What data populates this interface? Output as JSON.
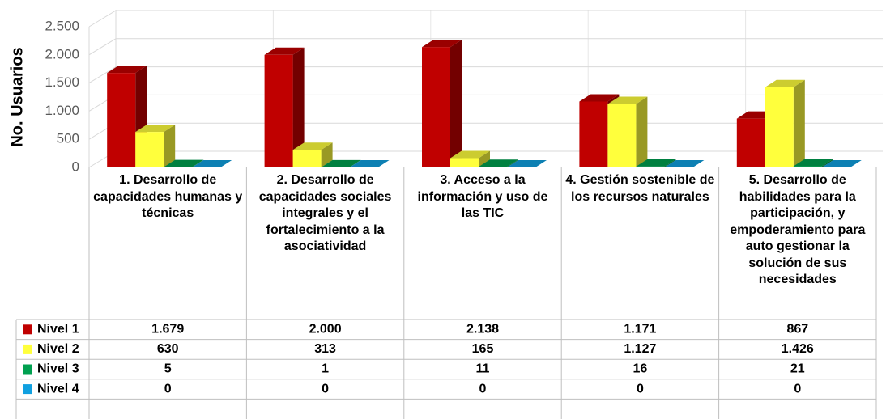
{
  "chart_data": {
    "type": "bar3d",
    "y_axis_label": "No. Usuarios",
    "categories": [
      "1. Desarrollo de capacidades humanas y técnicas",
      "2. Desarrollo de capacidades sociales integrales y el fortalecimiento a la asociatividad",
      "3. Acceso a la información y uso de las TIC",
      "4. Gestión sostenible de los recursos naturales",
      "5. Desarrollo de habilidades para la participación, y empoderamiento para auto gestionar la solución de sus necesidades"
    ],
    "series": [
      {
        "name": "Nivel 1",
        "color": "#c00000",
        "values": [
          1679,
          2000,
          2138,
          1171,
          867
        ],
        "value_labels": [
          "1.679",
          "2.000",
          "2.138",
          "1.171",
          "867"
        ]
      },
      {
        "name": "Nivel 2",
        "color": "#ffff3c",
        "values": [
          630,
          313,
          165,
          1127,
          1426
        ],
        "value_labels": [
          "630",
          "313",
          "165",
          "1.127",
          "1.426"
        ]
      },
      {
        "name": "Nivel 3",
        "color": "#00a050",
        "values": [
          5,
          1,
          11,
          16,
          21
        ]
      },
      {
        "name": "Nivel 4",
        "color": "#10a0e0",
        "values": [
          0,
          0,
          0,
          0,
          0
        ]
      }
    ],
    "ylim": [
      0,
      2500
    ],
    "yticks": [
      0,
      500,
      {
        "value": 1000,
        "label": "1.000"
      },
      {
        "value": 1500,
        "label": "1.500"
      },
      {
        "value": 2000,
        "label": "2.000"
      },
      {
        "value": 2500,
        "label": "2.500"
      }
    ],
    "grid": true,
    "data_table": true
  }
}
